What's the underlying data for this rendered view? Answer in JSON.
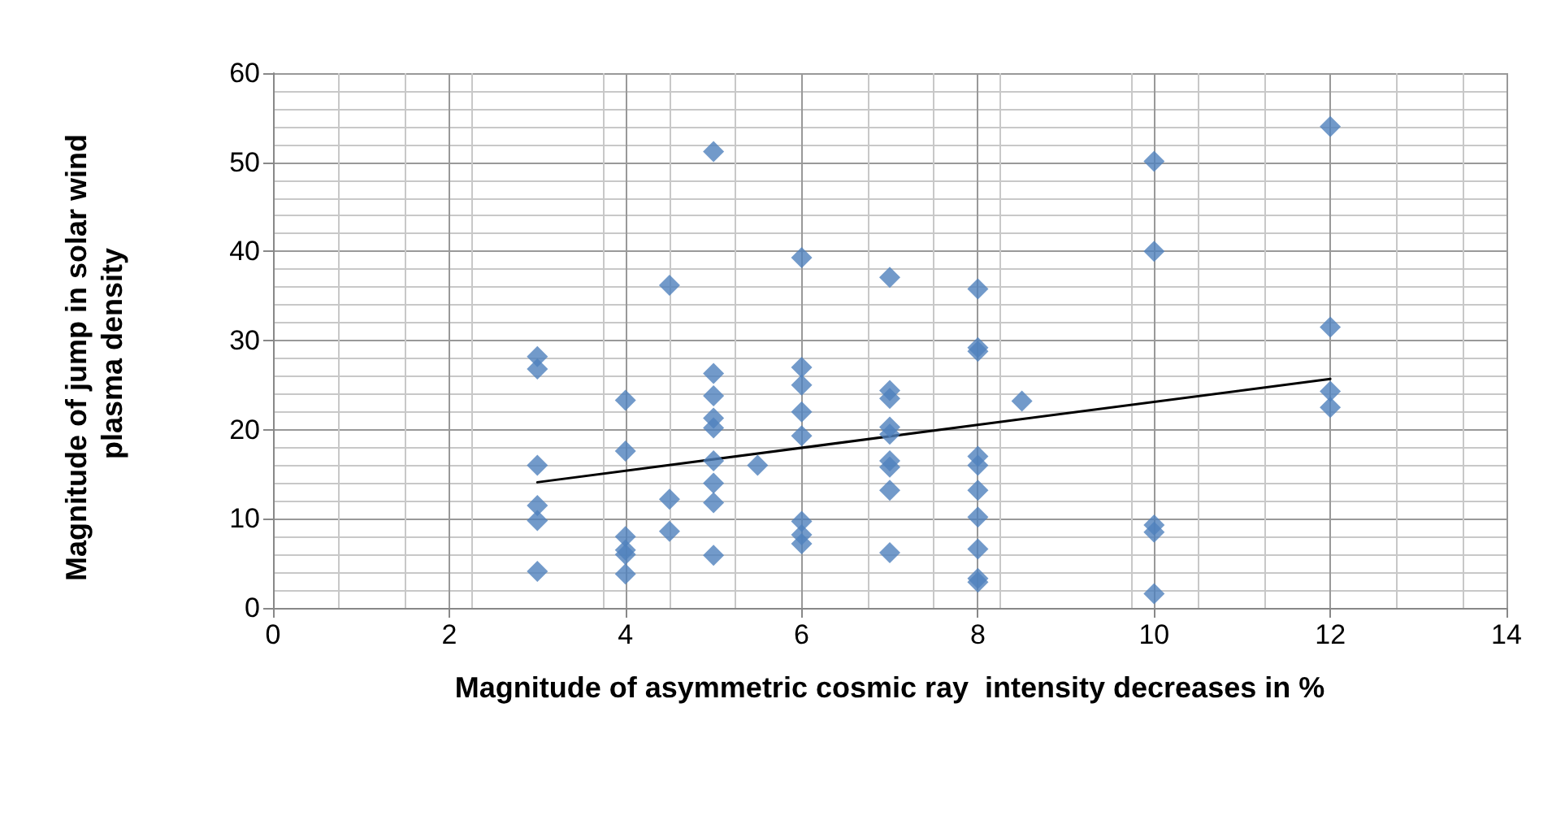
{
  "chart_data": {
    "type": "scatter",
    "xlabel": "Magnitude of asymmetric cosmic ray  intensity decreases in %",
    "ylabel": "Magnitude of jump in solar wind plasma density",
    "xlim": [
      0,
      14
    ],
    "xticks": [
      0,
      2,
      4,
      6,
      8,
      10,
      12,
      14
    ],
    "ylim": [
      0,
      60
    ],
    "yticks": [
      0,
      10,
      20,
      30,
      40,
      50,
      60
    ],
    "grid": true,
    "marker": "diamond",
    "series": [
      {
        "color": "#4f81bd",
        "x": [
          3,
          3,
          3,
          3,
          3,
          3,
          4,
          4,
          4,
          4,
          4,
          4,
          4.5,
          4.5,
          4.5,
          5,
          5,
          5,
          5,
          5,
          5,
          5,
          5,
          5,
          5.5,
          6,
          6,
          6,
          6,
          6,
          6,
          6,
          6,
          7,
          7,
          7,
          7,
          7,
          7,
          7,
          7,
          7,
          8,
          8,
          8,
          8,
          8,
          8,
          8,
          8,
          8,
          8,
          8.5,
          10,
          10,
          10,
          10,
          10,
          12,
          12,
          12,
          12
        ],
        "values": [
          28.2,
          26.8,
          16,
          11.5,
          9.8,
          4.1,
          23.3,
          17.6,
          8,
          6.5,
          6,
          3.8,
          36.2,
          12.2,
          8.6,
          51.2,
          26.3,
          23.8,
          21.3,
          20.2,
          16.5,
          14,
          11.8,
          5.9,
          16,
          39.3,
          27,
          25,
          22,
          19.3,
          9.7,
          8.2,
          7.2,
          37.1,
          24.4,
          23.5,
          20.3,
          19.5,
          16.5,
          15.8,
          13.2,
          6.2,
          35.8,
          29.2,
          28.8,
          17,
          16,
          13.2,
          10.2,
          6.6,
          3.3,
          2.9,
          23.2,
          50.1,
          40,
          9.3,
          8.5,
          1.6,
          54,
          31.5,
          24.3,
          22.5
        ]
      },
      {
        "type": "line",
        "color": "#000000",
        "marker": "none",
        "line_style": "solid",
        "x": [
          3,
          12
        ],
        "values": [
          14.1,
          25.7
        ]
      }
    ]
  }
}
